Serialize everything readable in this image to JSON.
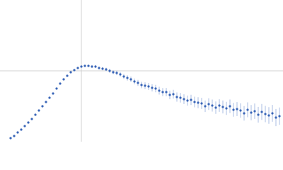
{
  "chart_data": {
    "type": "scatter",
    "x": [
      15,
      20,
      25,
      30,
      35,
      40,
      45,
      50,
      55,
      60,
      65,
      70,
      75,
      80,
      85,
      90,
      95,
      100,
      105,
      110,
      115,
      120,
      125,
      130,
      135,
      140,
      145,
      150,
      155,
      160,
      165,
      170,
      175,
      180,
      185,
      190,
      195,
      200,
      205,
      210,
      215,
      220,
      225,
      230,
      235,
      240,
      245,
      250,
      255,
      260,
      265,
      270,
      275,
      280,
      285,
      290,
      295,
      300,
      305,
      310,
      315,
      320,
      325,
      330,
      335,
      340,
      345,
      350,
      355,
      360,
      365,
      370,
      375,
      380,
      385,
      390,
      395
    ],
    "series": [
      {
        "color": "#3a66b8",
        "error_color": "#a9bde3",
        "values": [
          5,
          8,
          13,
          17,
          22,
          27,
          32,
          38,
          44,
          50,
          56,
          62,
          68,
          75,
          82,
          88,
          93,
          98,
          101,
          104,
          106,
          107,
          107,
          106,
          106,
          104,
          103,
          102,
          100,
          98,
          97,
          95,
          92,
          90,
          88,
          85,
          83,
          80,
          79,
          78,
          76,
          75,
          72,
          70,
          70,
          66,
          67,
          63,
          62,
          60,
          58,
          59,
          56,
          55,
          54,
          50,
          53,
          51,
          48,
          51,
          49,
          47,
          50,
          45,
          46,
          44,
          40,
          45,
          41,
          43,
          38,
          42,
          39,
          37,
          40,
          34,
          36
        ],
        "errors": [
          0.3,
          0.3,
          0.3,
          0.3,
          0.3,
          0.3,
          0.3,
          0.3,
          0.3,
          0.3,
          0.3,
          0.3,
          0.3,
          0.3,
          0.3,
          0.3,
          0.3,
          0.5,
          0.7,
          0.9,
          1.1,
          1.3,
          1.5,
          1.7,
          1.9,
          2.1,
          2.3,
          2.5,
          2.7,
          2.9,
          3.1,
          3.3,
          3.5,
          3.7,
          3.9,
          4.1,
          4.3,
          4.5,
          4.7,
          4.9,
          5.1,
          5.3,
          5.5,
          5.7,
          5.9,
          6.1,
          6.3,
          6.5,
          6.7,
          6.9,
          7.1,
          7.3,
          7.5,
          7.7,
          7.9,
          8.1,
          8.3,
          8.5,
          8.7,
          8.9,
          9.1,
          9.3,
          9.5,
          9.7,
          9.9,
          10.1,
          10.3,
          10.5,
          10.7,
          10.9,
          11.1,
          11.3,
          11.5,
          11.7,
          11.9,
          12.1,
          12.3
        ]
      }
    ],
    "xlim": [
      0,
      400
    ],
    "ylim": [
      0,
      200
    ],
    "xticks": [
      115
    ],
    "yticks": [
      100
    ],
    "grid": true,
    "grid_color": "#d0d0d0"
  }
}
